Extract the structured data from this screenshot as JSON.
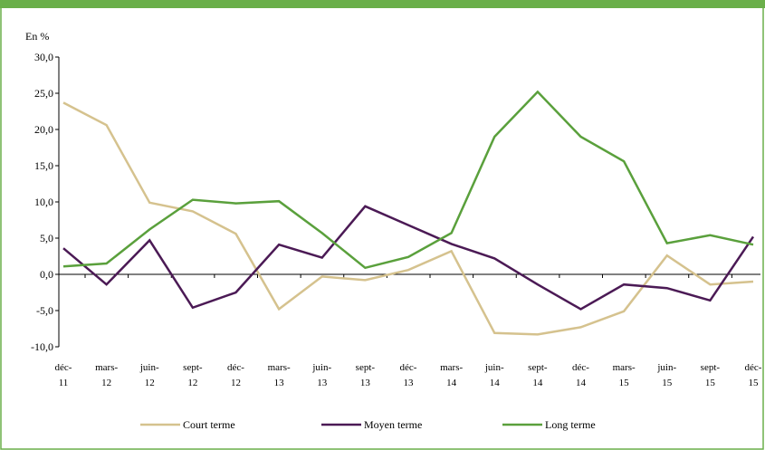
{
  "chart_data": {
    "type": "line",
    "y_label": "En %",
    "categories": [
      "déc-11",
      "mars-12",
      "juin-12",
      "sept-12",
      "déc-12",
      "mars-13",
      "juin-13",
      "sept-13",
      "déc-13",
      "mars-14",
      "juin-14",
      "sept-14",
      "déc-14",
      "mars-15",
      "juin-15",
      "sept-15",
      "déc-15"
    ],
    "series": [
      {
        "name": "Court terme",
        "color": "#d5c28e",
        "values": [
          23.7,
          20.6,
          9.9,
          8.7,
          5.6,
          -4.8,
          -0.3,
          -0.8,
          0.6,
          3.2,
          -8.1,
          -8.3,
          -7.3,
          -5.1,
          2.6,
          -1.4,
          -1.0
        ]
      },
      {
        "name": "Moyen terme",
        "color": "#4b1a55",
        "values": [
          3.6,
          -1.4,
          4.7,
          -4.6,
          -2.5,
          4.1,
          2.3,
          9.4,
          6.8,
          4.2,
          2.2,
          -1.4,
          -4.8,
          -1.4,
          -1.9,
          -3.6,
          5.2
        ]
      },
      {
        "name": "Long terme",
        "color": "#5aa03c",
        "values": [
          1.1,
          1.5,
          6.2,
          10.3,
          9.8,
          10.1,
          5.7,
          0.9,
          2.4,
          5.7,
          19.0,
          25.2,
          19.0,
          15.6,
          4.3,
          5.4,
          4.1
        ]
      }
    ],
    "ylim": [
      -10,
      30
    ],
    "yticks": [
      {
        "value": -10,
        "label": "-10,0"
      },
      {
        "value": -5,
        "label": "-5,0"
      },
      {
        "value": 0,
        "label": "0,0"
      },
      {
        "value": 5,
        "label": "5,0"
      },
      {
        "value": 10,
        "label": "10,0"
      },
      {
        "value": 15,
        "label": "15,0"
      },
      {
        "value": 20,
        "label": "20,0"
      },
      {
        "value": 25,
        "label": "25,0"
      },
      {
        "value": 30,
        "label": "30,0"
      }
    ],
    "grid": false,
    "legend": "bottom"
  }
}
